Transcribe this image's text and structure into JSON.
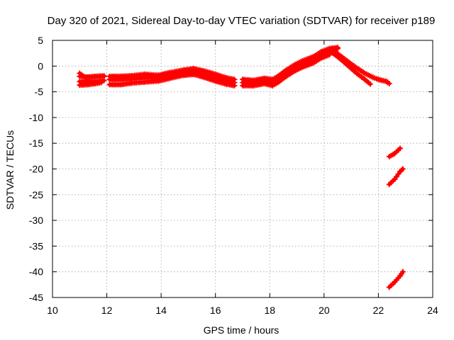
{
  "chart_data": {
    "type": "scatter",
    "title": "Day 320 of 2021, Sidereal Day-to-day VTEC variation (SDTVAR) for receiver p189",
    "xlabel": "GPS time / hours",
    "ylabel": "SDTVAR / TECUs",
    "xlim": [
      10,
      24
    ],
    "ylim": [
      -45,
      5
    ],
    "x_ticks": [
      10,
      12,
      14,
      16,
      18,
      20,
      22,
      24
    ],
    "y_ticks": [
      5,
      0,
      -5,
      -10,
      -15,
      -20,
      -25,
      -30,
      -35,
      -40,
      -45
    ],
    "grid": true,
    "marker": "+",
    "series": [
      {
        "name": "SDTVAR",
        "color": "#ff0000",
        "tracks": [
          [
            [
              11.0,
              -1.4
            ],
            [
              11.2,
              -2.2
            ],
            [
              11.6,
              -2.0
            ],
            [
              11.9,
              -1.9
            ]
          ],
          [
            [
              11.0,
              -2.0
            ],
            [
              11.3,
              -2.2
            ],
            [
              11.6,
              -2.1
            ],
            [
              11.9,
              -2.0
            ]
          ],
          [
            [
              11.0,
              -3.0
            ],
            [
              11.3,
              -3.0
            ],
            [
              11.6,
              -3.0
            ],
            [
              11.9,
              -2.8
            ]
          ],
          [
            [
              11.0,
              -3.7
            ],
            [
              11.3,
              -3.6
            ],
            [
              11.6,
              -3.4
            ],
            [
              11.8,
              -3.2
            ]
          ],
          [
            [
              12.1,
              -2.0
            ],
            [
              12.5,
              -2.0
            ],
            [
              12.9,
              -1.9
            ],
            [
              13.4,
              -1.6
            ],
            [
              13.9,
              -1.8
            ],
            [
              14.3,
              -1.3
            ],
            [
              14.8,
              -0.8
            ],
            [
              15.2,
              -0.5
            ],
            [
              15.6,
              -1.0
            ],
            [
              16.0,
              -1.6
            ],
            [
              16.4,
              -2.3
            ],
            [
              16.7,
              -2.6
            ]
          ],
          [
            [
              12.1,
              -2.6
            ],
            [
              12.5,
              -2.6
            ],
            [
              12.9,
              -2.5
            ],
            [
              13.4,
              -2.3
            ],
            [
              13.9,
              -2.3
            ],
            [
              14.3,
              -1.9
            ],
            [
              14.8,
              -1.3
            ],
            [
              15.2,
              -1.0
            ],
            [
              15.6,
              -1.6
            ],
            [
              16.0,
              -2.2
            ],
            [
              16.4,
              -2.9
            ],
            [
              16.7,
              -3.2
            ]
          ],
          [
            [
              12.1,
              -3.6
            ],
            [
              12.5,
              -3.6
            ],
            [
              12.9,
              -3.3
            ],
            [
              13.4,
              -3.1
            ],
            [
              13.9,
              -2.9
            ],
            [
              14.3,
              -2.4
            ],
            [
              14.8,
              -1.8
            ],
            [
              15.2,
              -1.6
            ],
            [
              15.6,
              -2.2
            ],
            [
              16.0,
              -2.9
            ],
            [
              16.4,
              -3.5
            ],
            [
              16.7,
              -3.8
            ]
          ],
          [
            [
              17.0,
              -2.6
            ],
            [
              17.4,
              -2.8
            ],
            [
              17.8,
              -2.4
            ],
            [
              18.1,
              -2.6
            ],
            [
              18.3,
              -2.0
            ],
            [
              18.6,
              -0.8
            ],
            [
              18.9,
              0.2
            ],
            [
              19.2,
              1.0
            ],
            [
              19.6,
              1.8
            ],
            [
              19.9,
              2.8
            ],
            [
              20.2,
              3.4
            ],
            [
              20.5,
              3.6
            ]
          ],
          [
            [
              17.0,
              -3.2
            ],
            [
              17.4,
              -3.4
            ],
            [
              17.8,
              -3.0
            ],
            [
              18.1,
              -3.2
            ],
            [
              18.3,
              -2.8
            ],
            [
              18.6,
              -1.4
            ],
            [
              18.9,
              -0.4
            ],
            [
              19.2,
              0.4
            ],
            [
              19.6,
              1.2
            ],
            [
              19.9,
              2.2
            ],
            [
              20.2,
              2.8
            ],
            [
              20.5,
              3.4
            ]
          ],
          [
            [
              17.0,
              -3.8
            ],
            [
              17.4,
              -3.8
            ],
            [
              17.8,
              -3.4
            ],
            [
              18.1,
              -3.8
            ],
            [
              18.3,
              -3.2
            ],
            [
              18.6,
              -2.0
            ],
            [
              18.9,
              -1.0
            ],
            [
              19.2,
              -0.2
            ],
            [
              19.6,
              0.6
            ],
            [
              19.9,
              1.6
            ],
            [
              20.2,
              2.2
            ]
          ],
          [
            [
              20.4,
              2.8
            ],
            [
              20.8,
              1.2
            ],
            [
              21.1,
              0.0
            ],
            [
              21.5,
              -1.4
            ],
            [
              21.8,
              -2.2
            ],
            [
              22.0,
              -2.6
            ],
            [
              22.3,
              -3.0
            ],
            [
              22.4,
              -3.4
            ]
          ],
          [
            [
              20.2,
              3.0
            ],
            [
              20.6,
              1.4
            ],
            [
              20.9,
              0.0
            ],
            [
              21.2,
              -1.4
            ],
            [
              21.5,
              -2.6
            ],
            [
              21.7,
              -3.5
            ]
          ],
          [
            [
              22.4,
              -17.6
            ],
            [
              22.6,
              -17.0
            ],
            [
              22.8,
              -16.0
            ]
          ],
          [
            [
              22.4,
              -23.0
            ],
            [
              22.6,
              -22.0
            ],
            [
              22.8,
              -20.5
            ],
            [
              22.9,
              -20.0
            ]
          ],
          [
            [
              22.4,
              -43.0
            ],
            [
              22.6,
              -42.0
            ],
            [
              22.8,
              -40.8
            ],
            [
              22.9,
              -40.0
            ]
          ]
        ]
      }
    ]
  }
}
